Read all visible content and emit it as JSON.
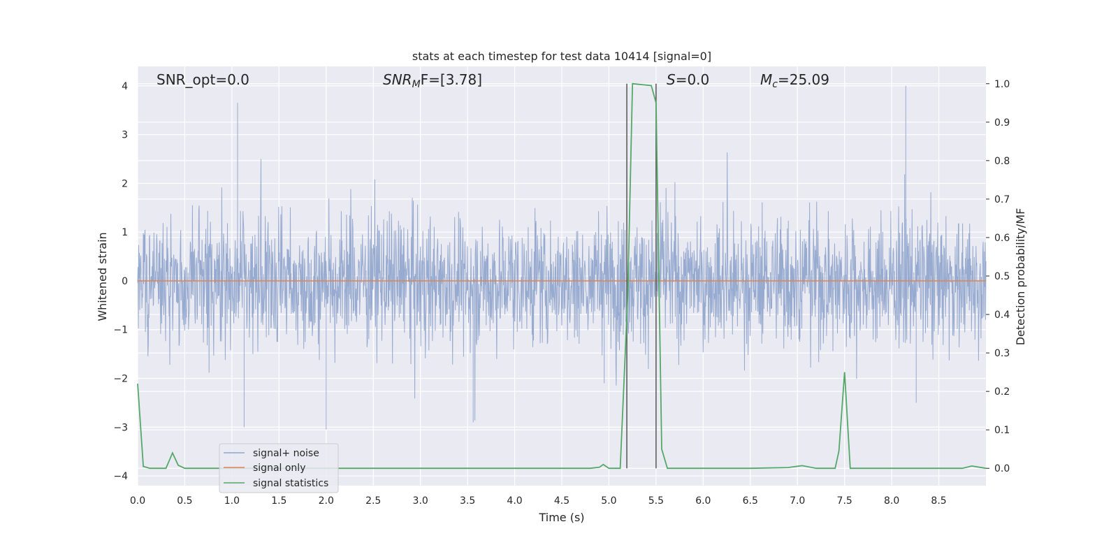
{
  "chart_data": {
    "type": "line",
    "title": "stats at each timestep for test data 10414 [signal=0]",
    "xlabel": "Time (s)",
    "ylabel": "Whitened strain",
    "y2label": "Detection probability/MF",
    "xlim": [
      0,
      9.0
    ],
    "ylim": [
      -4.2,
      4.4
    ],
    "y2lim": [
      -0.045,
      1.045
    ],
    "x_ticks": [
      "0.0",
      "0.5",
      "1.0",
      "1.5",
      "2.0",
      "2.5",
      "3.0",
      "3.5",
      "4.0",
      "4.5",
      "5.0",
      "5.5",
      "6.0",
      "6.5",
      "7.0",
      "7.5",
      "8.0",
      "8.5"
    ],
    "y_ticks": [
      "4",
      "3",
      "2",
      "1",
      "0",
      "−1",
      "−2",
      "−3",
      "−4"
    ],
    "y2_ticks": [
      "1.0",
      "0.9",
      "0.8",
      "0.7",
      "0.6",
      "0.5",
      "0.4",
      "0.3",
      "0.2",
      "0.1",
      "0.0"
    ],
    "grid": true,
    "legend_position": "lower-left",
    "annotations": {
      "snr_opt": "SNR_opt=0.0",
      "snr_mf_main": "SNR",
      "snr_mf_sub": "M",
      "snr_mf_rest": "F=[3.78]",
      "s_main": "S",
      "s_rest": "=0.0",
      "mc_main": "M",
      "mc_sub": "c",
      "mc_rest": "=25.09"
    },
    "series": [
      {
        "name": "signal+ noise",
        "color": "#92a6cc",
        "axis": "left",
        "description_points": {
          "x": [
            0.0,
            9.0
          ],
          "envelope_low": [
            -1.5,
            -1.5
          ],
          "envelope_high": [
            1.5,
            1.5
          ]
        },
        "peaks": {
          "x": [
            1.06,
            2.0,
            3.56,
            8.15,
            4.95,
            8.26,
            1.13
          ],
          "y": [
            3.65,
            -3.05,
            -2.9,
            4.0,
            -2.1,
            -2.5,
            -3.0
          ]
        }
      },
      {
        "name": "signal only",
        "color": "#dd8452",
        "axis": "left",
        "x": [
          0.0,
          9.0
        ],
        "y": [
          0.0,
          0.0
        ]
      },
      {
        "name": "signal statistics",
        "color": "#55a868",
        "axis": "right",
        "x": [
          0.0,
          0.06,
          0.13,
          0.3,
          0.37,
          0.43,
          0.5,
          1.0,
          2.0,
          3.0,
          4.0,
          4.8,
          4.9,
          4.94,
          5.0,
          5.12,
          5.2,
          5.25,
          5.45,
          5.5,
          5.56,
          5.62,
          6.0,
          6.5,
          6.9,
          7.05,
          7.2,
          7.4,
          7.44,
          7.5,
          7.56,
          7.8,
          8.0,
          8.5,
          8.75,
          8.85,
          9.0
        ],
        "y": [
          0.22,
          0.005,
          0.0,
          0.0,
          0.04,
          0.008,
          0.0,
          0.0,
          0.0,
          0.0,
          0.0,
          0.0,
          0.003,
          0.01,
          0.0,
          0.0,
          0.45,
          1.0,
          0.995,
          0.95,
          0.05,
          0.0,
          0.0,
          0.0,
          0.002,
          0.007,
          0.0,
          0.0,
          0.045,
          0.25,
          0.0,
          0.0,
          0.0,
          0.0,
          0.0,
          0.006,
          0.0
        ]
      }
    ],
    "markers": {
      "vlines_x": [
        5.19,
        5.5
      ],
      "color": "#555555"
    }
  }
}
